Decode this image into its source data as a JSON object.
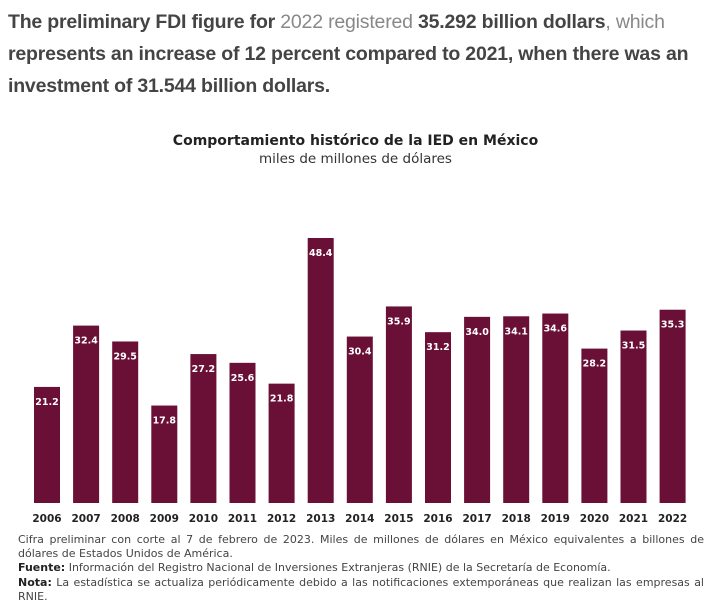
{
  "intro": {
    "part1": "The preliminary FDI figure for ",
    "part2": "2022 registered ",
    "part3": "35.292 billion dollars",
    "part4": ", which",
    "part5": " represents an increase of 12 percent compared to 2021, when there was an investment of 31.544 billion dollars."
  },
  "chart_data": {
    "type": "bar",
    "title": "Comportamiento histórico de la IED en México",
    "subtitle": "miles de millones de dólares",
    "categories": [
      "2006",
      "2007",
      "2008",
      "2009",
      "2010",
      "2011",
      "2012",
      "2013",
      "2014",
      "2015",
      "2016",
      "2017",
      "2018",
      "2019",
      "2020",
      "2021",
      "2022"
    ],
    "values": [
      21.2,
      32.4,
      29.5,
      17.8,
      27.2,
      25.6,
      21.8,
      48.4,
      30.4,
      35.9,
      31.2,
      34.0,
      34.1,
      34.6,
      28.2,
      31.5,
      35.3
    ],
    "labels": [
      "21.2",
      "32.4",
      "29.5",
      "17.8",
      "27.2",
      "25.6",
      "21.8",
      "48.4",
      "30.4",
      "35.9",
      "31.2",
      "34.0",
      "34.1",
      "34.6",
      "28.2",
      "31.5",
      "35.3"
    ],
    "ylim": [
      0,
      48.4
    ],
    "grid": false,
    "bar_color": "#6a0f35"
  },
  "notes": {
    "line1": "Cifra preliminar con corte al 7 de febrero de 2023. Miles de millones de dólares en México equivalentes a billones de dólares de Estados Unidos de América.",
    "fuente_label": "Fuente:",
    "fuente_text": " Información del Registro Nacional de Inversiones Extranjeras (RNIE) de la Secretaría de Economía.",
    "nota_label": "Nota:",
    "nota_text": " La estadística se actualiza periódicamente debido a las notificaciones extemporáneas que realizan las empresas al RNIE."
  }
}
